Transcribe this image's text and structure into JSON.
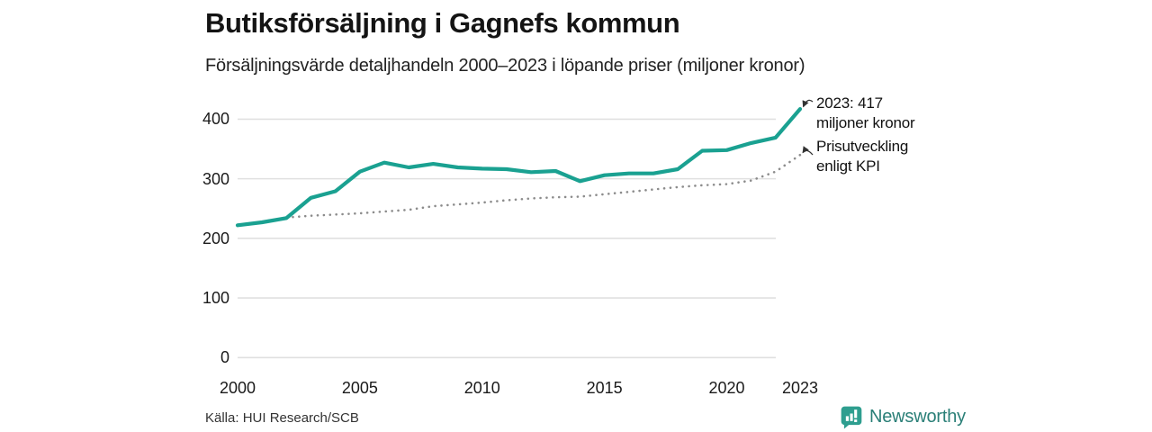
{
  "header": {
    "title": "Butiksförsäljning i Gagnefs kommun",
    "subtitle": "Försäljningsvärde detaljhandeln 2000–2023 i löpande priser (miljoner kronor)"
  },
  "annotations": [
    {
      "line1": "2023: 417",
      "line2": "miljoner kronor",
      "points_to": "sales-line-end"
    },
    {
      "line1": "Prisutveckling",
      "line2": "enligt KPI",
      "points_to": "kpi-line-end"
    }
  ],
  "footer": {
    "source": "Källa: HUI Research/SCB",
    "brand": "Newsworthy",
    "brand_icon": "newsworthy-speech-bubble-bar-chart-icon"
  },
  "colors": {
    "sales_line": "#1aa191",
    "kpi_dots": "#8c8c8c",
    "gridline": "#e0e0e0",
    "axis_text": "#1a1a1a",
    "annotation_arrow": "#333333",
    "brand_icon_teal": "#2e9e8f",
    "brand_text_teal": "#2a7f77"
  },
  "chart_data": {
    "type": "line",
    "title": "Butiksförsäljning i Gagnefs kommun",
    "subtitle": "Försäljningsvärde detaljhandeln 2000–2023 i löpande priser (miljoner kronor)",
    "x": [
      2000,
      2001,
      2002,
      2003,
      2004,
      2005,
      2006,
      2007,
      2008,
      2009,
      2010,
      2011,
      2012,
      2013,
      2014,
      2015,
      2016,
      2017,
      2018,
      2019,
      2020,
      2021,
      2022,
      2023
    ],
    "series": [
      {
        "name": "Butiksförsäljning (miljoner kronor)",
        "style": "solid",
        "values": [
          222,
          227,
          234,
          268,
          279,
          312,
          327,
          319,
          325,
          319,
          317,
          316,
          311,
          313,
          296,
          306,
          309,
          309,
          316,
          347,
          348,
          360,
          369,
          417
        ]
      },
      {
        "name": "Prisutveckling enligt KPI",
        "style": "dotted",
        "values": [
          222,
          228,
          235,
          238,
          240,
          242,
          245,
          248,
          254,
          257,
          260,
          264,
          267,
          269,
          270,
          274,
          278,
          282,
          286,
          289,
          291,
          297,
          312,
          340
        ]
      }
    ],
    "xticks": [
      "2000",
      "2005",
      "2010",
      "2015",
      "2020",
      "2023"
    ],
    "xtick_years": [
      2000,
      2005,
      2010,
      2015,
      2020,
      2023
    ],
    "yticks": [
      "0",
      "100",
      "200",
      "300",
      "400"
    ],
    "ytick_values": [
      0,
      100,
      200,
      300,
      400
    ],
    "ylim": [
      0,
      400
    ],
    "grid": "horizontal",
    "legend_position": "none",
    "last_value_label": "2023: 417 miljoner kronor",
    "source": "Källa: HUI Research/SCB"
  }
}
